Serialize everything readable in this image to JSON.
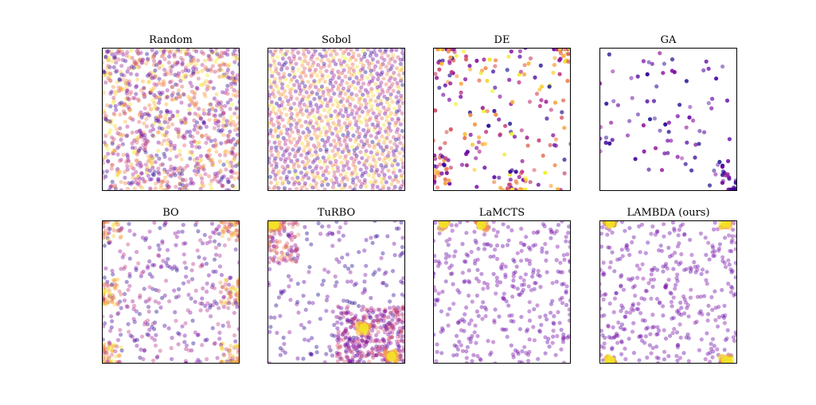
{
  "figure": {
    "background": "#ffffff",
    "colormap": "plasma",
    "colormap_stops": [
      "#0d0887",
      "#6a00a8",
      "#b12a90",
      "#e16462",
      "#fca636",
      "#f0f921"
    ],
    "point_alpha": 0.4
  },
  "chart_data": [
    {
      "type": "scatter",
      "title": "Random",
      "xlabel": "",
      "ylabel": "",
      "xlim": [
        0,
        1
      ],
      "ylim": [
        0,
        1
      ],
      "axis_ticks": false,
      "grid": false,
      "pattern": "uniform-random",
      "n_points": 1000,
      "point_color_value": "mixed across full colormap",
      "hotspots": []
    },
    {
      "type": "scatter",
      "title": "Sobol",
      "xlabel": "",
      "ylabel": "",
      "xlim": [
        0,
        1
      ],
      "ylim": [
        0,
        1
      ],
      "axis_ticks": false,
      "grid": false,
      "pattern": "low-discrepancy",
      "n_points": 1000,
      "point_color_value": "mixed across full colormap",
      "hotspots": []
    },
    {
      "type": "scatter",
      "title": "DE",
      "xlabel": "",
      "ylabel": "",
      "xlim": [
        0,
        1
      ],
      "ylim": [
        0,
        1
      ],
      "axis_ticks": false,
      "grid": false,
      "pattern": "sparse, clustered near borders",
      "n_points": 260,
      "point_color_value": "mixed, darker and more opaque",
      "hotspots": [
        [
          0.1,
          0.98
        ],
        [
          0.95,
          0.98
        ],
        [
          0.05,
          0.15
        ],
        [
          0.6,
          0.05
        ]
      ]
    },
    {
      "type": "scatter",
      "title": "GA",
      "xlabel": "",
      "ylabel": "",
      "xlim": [
        0,
        1
      ],
      "ylim": [
        0,
        1
      ],
      "axis_ticks": false,
      "grid": false,
      "pattern": "very sparse",
      "n_points": 110,
      "point_color_value": "mostly purple",
      "hotspots": [
        [
          0.9,
          0.15
        ],
        [
          0.98,
          0.02
        ]
      ]
    },
    {
      "type": "scatter",
      "title": "BO",
      "xlabel": "",
      "ylabel": "",
      "xlim": [
        0,
        1
      ],
      "ylim": [
        0,
        1
      ],
      "axis_ticks": false,
      "grid": false,
      "pattern": "grid-like with dense corners and edges",
      "n_points": 600,
      "point_color_value": "purple interior, orange/yellow at corners",
      "hotspots": [
        [
          0.05,
          0.95
        ],
        [
          0.95,
          0.95
        ],
        [
          0.05,
          0.05
        ],
        [
          0.95,
          0.05
        ],
        [
          0.05,
          0.5
        ],
        [
          0.95,
          0.5
        ]
      ]
    },
    {
      "type": "scatter",
      "title": "TuRBO",
      "xlabel": "",
      "ylabel": "",
      "xlim": [
        0,
        1
      ],
      "ylim": [
        0,
        1
      ],
      "axis_ticks": false,
      "grid": false,
      "pattern": "concentrated trust regions",
      "n_points": 650,
      "point_color_value": "purple/red, bright at optima",
      "hotspots": [
        [
          0.05,
          0.97
        ],
        [
          0.9,
          0.05
        ],
        [
          0.7,
          0.25
        ]
      ]
    },
    {
      "type": "scatter",
      "title": "LaMCTS",
      "xlabel": "",
      "ylabel": "",
      "xlim": [
        0,
        1
      ],
      "ylim": [
        0,
        1
      ],
      "axis_ticks": false,
      "grid": false,
      "pattern": "uniform, sparse purple",
      "n_points": 350,
      "point_color_value": "purple",
      "hotspots": [
        [
          0.08,
          0.98
        ],
        [
          0.35,
          0.97
        ]
      ]
    },
    {
      "type": "scatter",
      "title": "LAMBDA (ours)",
      "xlabel": "",
      "ylabel": "",
      "xlim": [
        0,
        1
      ],
      "ylim": [
        0,
        1
      ],
      "axis_ticks": false,
      "grid": false,
      "pattern": "uniform purple with corner optima",
      "n_points": 380,
      "point_color_value": "purple, yellow at corners",
      "hotspots": [
        [
          0.08,
          0.98
        ],
        [
          0.92,
          0.98
        ],
        [
          0.08,
          0.02
        ],
        [
          0.92,
          0.02
        ]
      ]
    }
  ]
}
